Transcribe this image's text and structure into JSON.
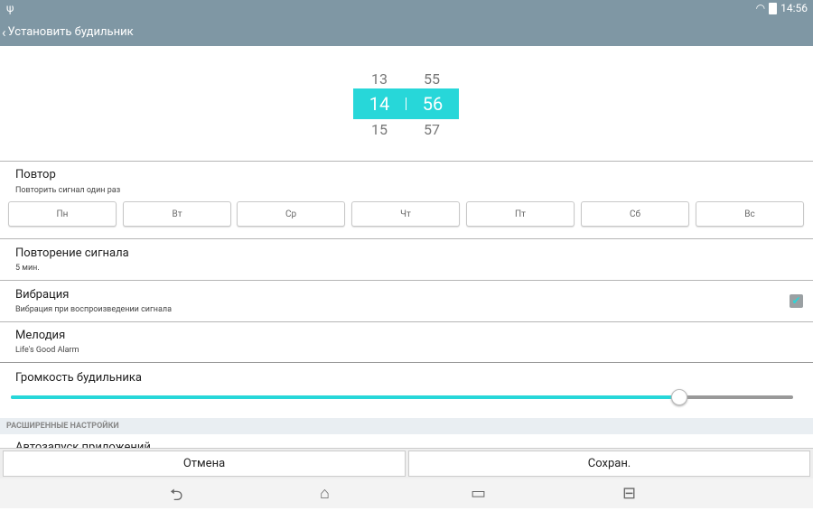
{
  "status_bar": {
    "usb_icon": "usb-icon",
    "wifi_icon": "wifi-icon",
    "battery_icon": "battery-icon",
    "time": "14:56"
  },
  "app_bar": {
    "back_icon": "chevron-left-icon",
    "title": "Установить будильник"
  },
  "time_picker": {
    "hour_prev": "13",
    "hour": "14",
    "hour_next": "15",
    "minute_prev": "55",
    "minute": "56",
    "minute_next": "57",
    "accent": "#27d7d9"
  },
  "repeat": {
    "title": "Повтор",
    "subtitle": "Повторить сигнал один раз",
    "days": [
      "Пн",
      "Вт",
      "Ср",
      "Чт",
      "Пт",
      "Сб",
      "Вс"
    ]
  },
  "snooze": {
    "title": "Повторение сигнала",
    "value": "5 мин."
  },
  "vibration": {
    "title": "Вибрация",
    "subtitle": "Вибрация при воспроизведении сигнала",
    "checked": true
  },
  "ringtone": {
    "title": "Мелодия",
    "value": "Life's Good Alarm"
  },
  "volume": {
    "title": "Громкость будильника",
    "level": 0.855
  },
  "advanced": {
    "header": "РАСШИРЕННЫЕ НАСТРОЙКИ",
    "first_item": "Автозапуск приложений"
  },
  "buttons": {
    "cancel": "Отмена",
    "save": "Сохран."
  },
  "nav_bar": {
    "back": "back-icon",
    "home": "home-icon",
    "recents": "recents-icon",
    "menu": "menu-icon"
  }
}
